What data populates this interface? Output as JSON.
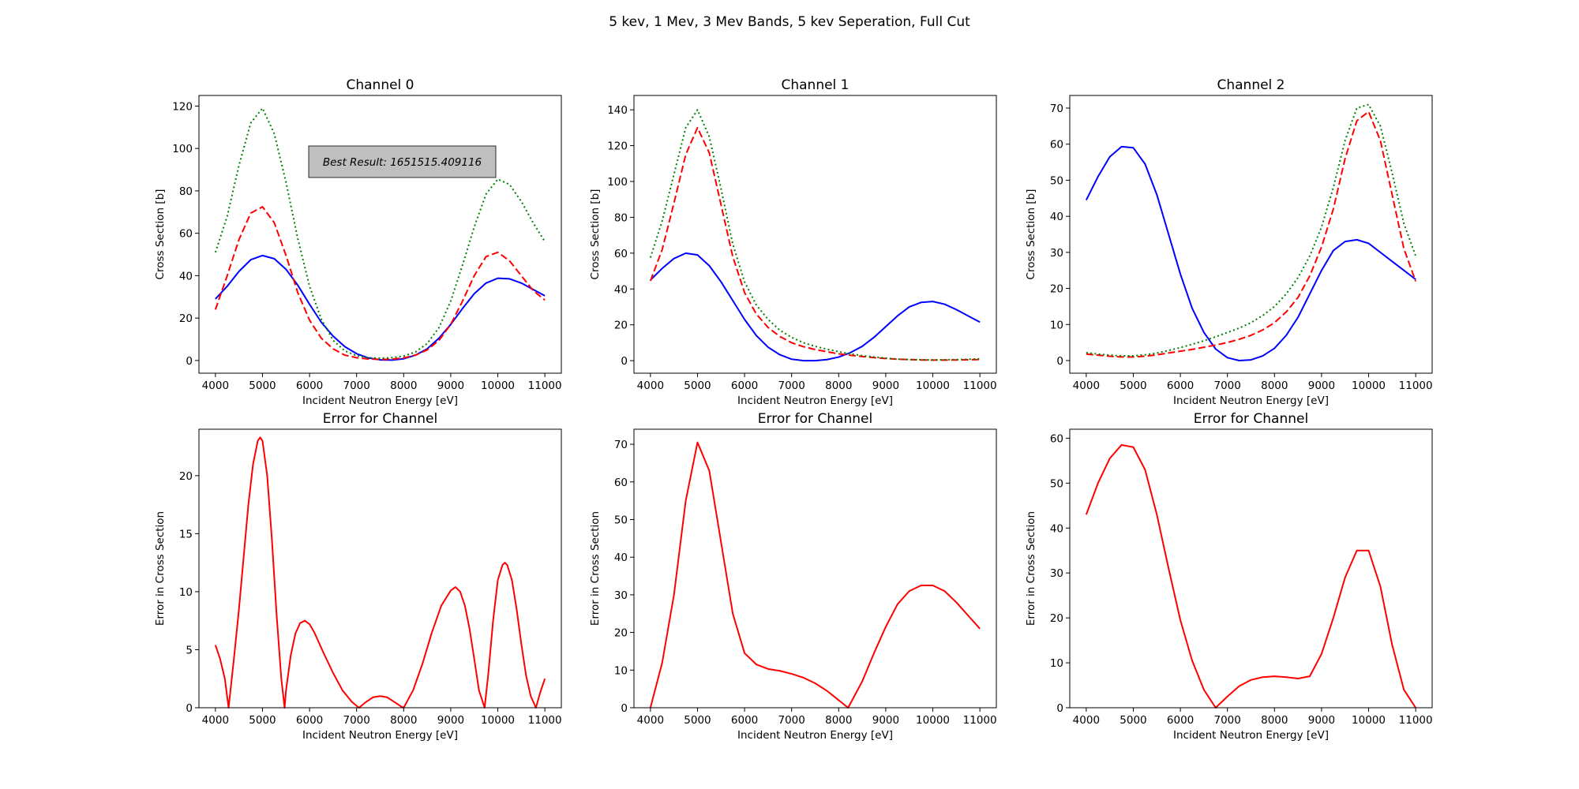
{
  "suptitle": "5 kev, 1 Mev, 3 Mev Bands, 5 kev Seperation, Full Cut",
  "annotation": "Best Result: 1651515.409116",
  "colors": {
    "solid": "#0000ff",
    "dashed": "#ff0000",
    "dotted": "#008000",
    "error": "#ff0000",
    "annotation_bg": "#bfbfbf"
  },
  "chart_data": [
    {
      "type": "line",
      "title": "Channel 0",
      "xlabel": "Incident Neutron Energy [eV]",
      "ylabel": "Cross Section [b]",
      "xlim": [
        3650,
        11350
      ],
      "ylim": [
        -6,
        125
      ],
      "xticks": [
        4000,
        5000,
        6000,
        7000,
        8000,
        9000,
        10000,
        11000
      ],
      "yticks": [
        0,
        20,
        40,
        60,
        80,
        100,
        120
      ],
      "x": [
        4000,
        4250,
        4500,
        4750,
        5000,
        5250,
        5500,
        5750,
        6000,
        6250,
        6500,
        6750,
        7000,
        7250,
        7500,
        7750,
        8000,
        8250,
        8500,
        8750,
        9000,
        9250,
        9500,
        9750,
        10000,
        10250,
        10500,
        10750,
        11000
      ],
      "series": [
        {
          "style": "solid",
          "values": [
            29,
            35,
            42,
            47.5,
            49.5,
            48,
            43,
            35.5,
            26.5,
            18,
            11.5,
            6.5,
            3.2,
            1.2,
            0.3,
            0.2,
            0.8,
            2.5,
            5.5,
            10.5,
            17,
            24.5,
            31.5,
            36.5,
            38.8,
            38.5,
            36.5,
            33.5,
            30.5
          ]
        },
        {
          "style": "dashed",
          "values": [
            24,
            40,
            57,
            69.5,
            72.5,
            65,
            49.5,
            32,
            19,
            10.5,
            5.5,
            2.5,
            1.3,
            0.7,
            0.5,
            0.6,
            1.2,
            2.5,
            5,
            9.5,
            17,
            28,
            40,
            49,
            51,
            47,
            40,
            33,
            28.5
          ]
        },
        {
          "style": "dotted",
          "values": [
            51,
            68,
            92,
            112,
            119,
            107,
            84,
            57.5,
            35,
            19.5,
            9.5,
            4.5,
            2.3,
            1.3,
            1.1,
            1.3,
            2.1,
            4,
            8,
            15.5,
            28,
            45,
            63,
            78.5,
            85.5,
            83,
            75,
            65,
            56
          ]
        }
      ]
    },
    {
      "type": "line",
      "title": "Channel 1",
      "xlabel": "Incident Neutron Energy [eV]",
      "ylabel": "Cross Section [b]",
      "xlim": [
        3650,
        11350
      ],
      "ylim": [
        -7,
        148
      ],
      "xticks": [
        4000,
        5000,
        6000,
        7000,
        8000,
        9000,
        10000,
        11000
      ],
      "yticks": [
        0,
        20,
        40,
        60,
        80,
        100,
        120,
        140
      ],
      "x": [
        4000,
        4250,
        4500,
        4750,
        5000,
        5250,
        5500,
        5750,
        6000,
        6250,
        6500,
        6750,
        7000,
        7250,
        7500,
        7750,
        8000,
        8250,
        8500,
        8750,
        9000,
        9250,
        9500,
        9750,
        10000,
        10250,
        10500,
        10750,
        11000
      ],
      "series": [
        {
          "style": "solid",
          "values": [
            45,
            51.5,
            57,
            60,
            59,
            53,
            44,
            33.5,
            23,
            14,
            7.5,
            3.3,
            0.8,
            0,
            0,
            0.6,
            2,
            4.5,
            8,
            13,
            19,
            25,
            30,
            32.5,
            33,
            31.5,
            28.5,
            25,
            21.5
          ]
        },
        {
          "style": "dashed",
          "values": [
            44.5,
            62,
            88,
            115,
            130,
            116,
            87,
            58,
            38,
            26,
            18.5,
            13.5,
            10,
            7.8,
            6.2,
            5,
            3.8,
            3,
            2.3,
            1.7,
            1.2,
            0.8,
            0.6,
            0.4,
            0.3,
            0.3,
            0.4,
            0.5,
            0.6
          ]
        },
        {
          "style": "dotted",
          "values": [
            57.5,
            78,
            104,
            130,
            140,
            125,
            96,
            65,
            44,
            31,
            23,
            17,
            13,
            10,
            8,
            6.4,
            5,
            3.8,
            2.8,
            2,
            1.4,
            0.9,
            0.6,
            0.5,
            0.4,
            0.5,
            0.6,
            0.8,
            1
          ]
        }
      ]
    },
    {
      "type": "line",
      "title": "Channel 2",
      "xlabel": "Incident Neutron Energy [eV]",
      "ylabel": "Cross Section [b]",
      "xlim": [
        3650,
        11350
      ],
      "ylim": [
        -3.5,
        73.5
      ],
      "xticks": [
        4000,
        5000,
        6000,
        7000,
        8000,
        9000,
        10000,
        11000
      ],
      "yticks": [
        0,
        10,
        20,
        30,
        40,
        50,
        60,
        70
      ],
      "x": [
        4000,
        4250,
        4500,
        4750,
        5000,
        5250,
        5500,
        5750,
        6000,
        6250,
        6500,
        6750,
        7000,
        7250,
        7500,
        7750,
        8000,
        8250,
        8500,
        8750,
        9000,
        9250,
        9500,
        9750,
        10000,
        10250,
        10500,
        10750,
        11000
      ],
      "series": [
        {
          "style": "solid",
          "values": [
            44.5,
            51,
            56.5,
            59.3,
            59,
            54.5,
            46,
            35,
            24,
            14.5,
            7.8,
            3.2,
            0.8,
            0,
            0.2,
            1.3,
            3.4,
            7,
            12,
            18.5,
            25,
            30.5,
            33,
            33.5,
            32.5,
            30,
            27.5,
            25,
            22.5
          ]
        },
        {
          "style": "dashed",
          "values": [
            1.8,
            1.5,
            1.2,
            1,
            1,
            1.2,
            1.6,
            2.1,
            2.6,
            3.1,
            3.7,
            4.3,
            5,
            5.9,
            7,
            8.5,
            10.5,
            13.5,
            17.5,
            23.5,
            31.5,
            42,
            56,
            66.5,
            69,
            61,
            46,
            31,
            22
          ]
        },
        {
          "style": "dotted",
          "values": [
            2.2,
            1.8,
            1.5,
            1.3,
            1.3,
            1.6,
            2.1,
            2.8,
            3.6,
            4.5,
            5.5,
            6.6,
            7.8,
            9,
            10.5,
            12.5,
            15,
            18.5,
            23,
            29,
            37,
            48,
            61,
            70,
            71,
            65,
            52,
            38,
            29
          ]
        }
      ]
    },
    {
      "type": "line",
      "title": "Error for Channel",
      "xlabel": "Incident Neutron Energy [eV]",
      "ylabel": "Error in Cross Section",
      "xlim": [
        3650,
        11350
      ],
      "ylim": [
        0,
        24
      ],
      "xticks": [
        4000,
        5000,
        6000,
        7000,
        8000,
        9000,
        10000,
        11000
      ],
      "yticks": [
        0,
        5,
        10,
        15,
        20
      ],
      "x": [
        4000,
        4100,
        4200,
        4280,
        4400,
        4500,
        4600,
        4700,
        4800,
        4900,
        4950,
        5000,
        5100,
        5200,
        5300,
        5400,
        5470,
        5500,
        5600,
        5700,
        5800,
        5900,
        6000,
        6100,
        6200,
        6300,
        6500,
        6700,
        6900,
        7050,
        7200,
        7350,
        7500,
        7650,
        7800,
        7950,
        8000,
        8200,
        8400,
        8600,
        8800,
        9000,
        9100,
        9200,
        9300,
        9400,
        9500,
        9600,
        9720,
        9800,
        9900,
        10000,
        10100,
        10150,
        10200,
        10300,
        10400,
        10500,
        10600,
        10700,
        10810,
        10900,
        11000
      ],
      "series": [
        {
          "name": "",
          "style": "solid",
          "values": [
            5.4,
            4.2,
            2.5,
            0,
            4.5,
            8.5,
            13,
            17.5,
            21,
            23,
            23.3,
            23,
            20,
            14.5,
            8,
            2.5,
            0,
            1.5,
            4.5,
            6.4,
            7.3,
            7.5,
            7.2,
            6.5,
            5.6,
            4.7,
            3,
            1.5,
            0.5,
            0,
            0.5,
            0.9,
            1,
            0.9,
            0.5,
            0.1,
            0,
            1.5,
            3.8,
            6.5,
            8.8,
            10.1,
            10.4,
            10,
            8.8,
            6.8,
            4.2,
            1.5,
            0,
            3,
            7.5,
            11,
            12.3,
            12.5,
            12.3,
            11,
            8.5,
            5.5,
            2.8,
            1,
            0,
            1.3,
            2.5
          ]
        }
      ]
    },
    {
      "type": "line",
      "title": "Error for Channel",
      "xlabel": "Incident Neutron Energy [eV]",
      "ylabel": "Error in Cross Section",
      "xlim": [
        3650,
        11350
      ],
      "ylim": [
        0,
        74
      ],
      "xticks": [
        4000,
        5000,
        6000,
        7000,
        8000,
        9000,
        10000,
        11000
      ],
      "yticks": [
        0,
        10,
        20,
        30,
        40,
        50,
        60,
        70
      ],
      "x": [
        4000,
        4250,
        4500,
        4750,
        5000,
        5250,
        5500,
        5750,
        6000,
        6250,
        6500,
        6750,
        7000,
        7250,
        7500,
        7750,
        8000,
        8200,
        8500,
        8750,
        9000,
        9250,
        9500,
        9750,
        10000,
        10250,
        10500,
        10750,
        11000
      ],
      "series": [
        {
          "name": "",
          "style": "solid",
          "values": [
            0,
            12,
            30,
            55,
            70.5,
            63,
            44,
            25,
            14.5,
            11.5,
            10.3,
            9.8,
            9,
            8,
            6.5,
            4.5,
            2,
            0,
            7,
            14.5,
            21.5,
            27.5,
            31,
            32.5,
            32.5,
            31,
            28,
            24.5,
            21
          ]
        }
      ]
    },
    {
      "type": "line",
      "title": "Error for Channel",
      "xlabel": "Incident Neutron Energy [eV]",
      "ylabel": "Error in Cross Section",
      "xlim": [
        3650,
        11350
      ],
      "ylim": [
        0,
        62
      ],
      "xticks": [
        4000,
        5000,
        6000,
        7000,
        8000,
        9000,
        10000,
        11000
      ],
      "yticks": [
        0,
        10,
        20,
        30,
        40,
        50,
        60
      ],
      "x": [
        4000,
        4250,
        4500,
        4750,
        5000,
        5250,
        5500,
        5750,
        6000,
        6250,
        6500,
        6750,
        7000,
        7250,
        7500,
        7750,
        8000,
        8250,
        8500,
        8750,
        9000,
        9250,
        9500,
        9750,
        10000,
        10250,
        10500,
        10750,
        11000
      ],
      "series": [
        {
          "name": "",
          "style": "solid",
          "values": [
            43,
            50,
            55.5,
            58.5,
            58,
            53,
            43,
            31,
            19.5,
            10.5,
            4,
            0,
            2.5,
            4.8,
            6.2,
            6.8,
            7,
            6.8,
            6.5,
            7,
            12,
            20,
            29,
            35,
            35,
            27,
            14,
            4,
            0
          ]
        }
      ]
    }
  ]
}
